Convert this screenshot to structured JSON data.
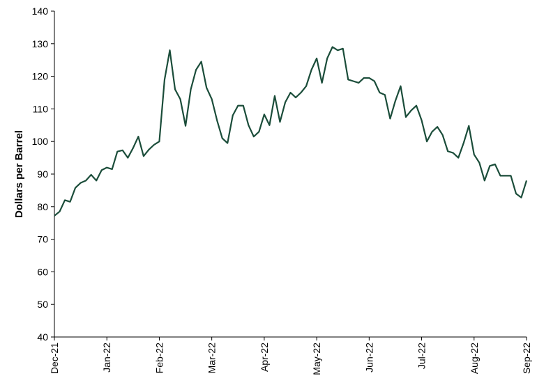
{
  "chart_data": {
    "type": "line",
    "ylabel": "Dollars per Barrel",
    "categories": [
      "Dec-21",
      null,
      null,
      null,
      null,
      null,
      null,
      null,
      null,
      null,
      "Jan-22",
      null,
      null,
      null,
      null,
      null,
      null,
      null,
      null,
      null,
      "Feb-22",
      null,
      null,
      null,
      null,
      null,
      null,
      null,
      null,
      null,
      "Mar-22",
      null,
      null,
      null,
      null,
      null,
      null,
      null,
      null,
      null,
      "Apr-22",
      null,
      null,
      null,
      null,
      null,
      null,
      null,
      null,
      null,
      "May-22",
      null,
      null,
      null,
      null,
      null,
      null,
      null,
      null,
      null,
      "Jun-22",
      null,
      null,
      null,
      null,
      null,
      null,
      null,
      null,
      null,
      "Jul-22",
      null,
      null,
      null,
      null,
      null,
      null,
      null,
      null,
      null,
      "Aug-22",
      null,
      null,
      null,
      null,
      null,
      null,
      null,
      null,
      null,
      "Sep-22"
    ],
    "series": [
      {
        "color": "#1b4d3a",
        "values": [
          77.2,
          78.5,
          82,
          81.5,
          85.8,
          87.3,
          88,
          89.8,
          88,
          91.2,
          92,
          91.5,
          96.9,
          97.3,
          95,
          98,
          101.5,
          95.5,
          97.5,
          99,
          100,
          119,
          128,
          116,
          113,
          104.8,
          116,
          122,
          124.5,
          116.5,
          113,
          106.5,
          101,
          99.5,
          108,
          111,
          111,
          105,
          101.5,
          103,
          108.3,
          105,
          114,
          106,
          112,
          115,
          113.5,
          115,
          117,
          122,
          125.5,
          118,
          125.5,
          129,
          128,
          128.5,
          119,
          118.5,
          118,
          119.5,
          119.5,
          118.5,
          115,
          114.3,
          107,
          112.5,
          117,
          107.5,
          109.5,
          111,
          106.5,
          100,
          103,
          104.5,
          102,
          97,
          96.5,
          95,
          99.5,
          104.8,
          96,
          93.5,
          88,
          92.5,
          93,
          89.5,
          89.5,
          89.5,
          84,
          82.8,
          88
        ]
      }
    ],
    "ylim": [
      40,
      140
    ],
    "yticks": [
      40,
      50,
      60,
      70,
      80,
      90,
      100,
      110,
      120,
      130,
      140
    ],
    "grid": false
  }
}
